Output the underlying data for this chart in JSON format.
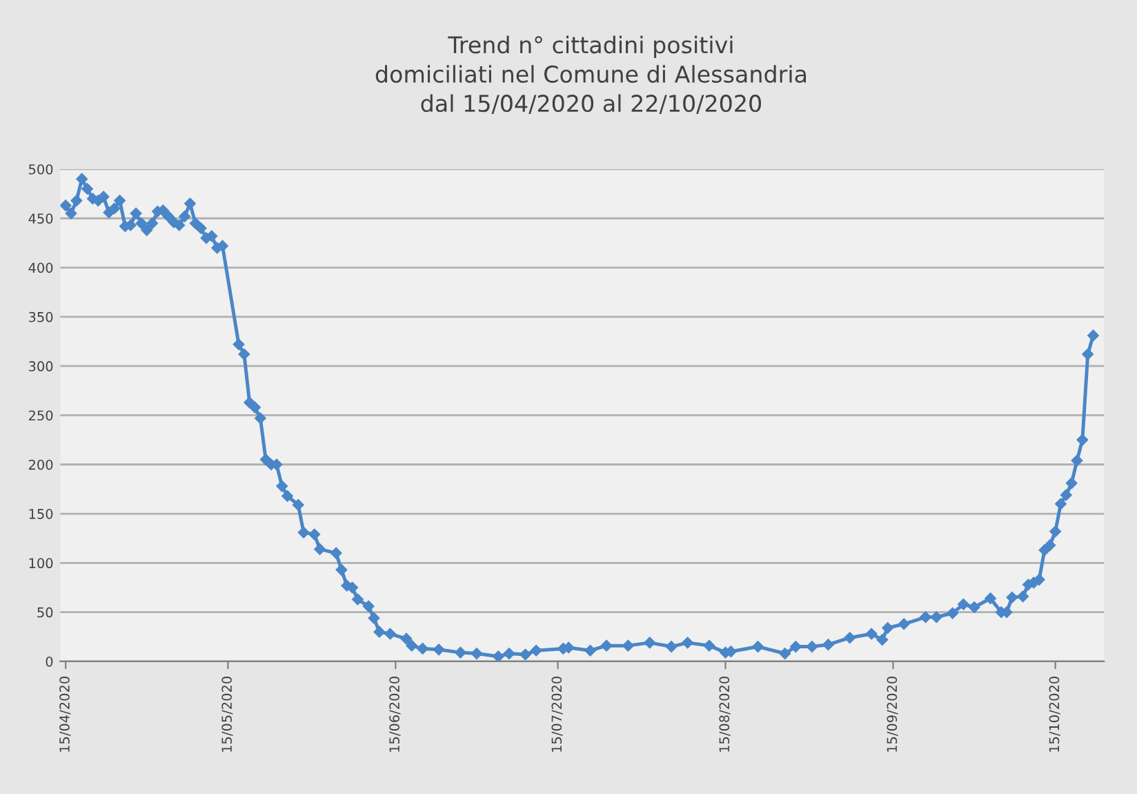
{
  "chart_data": {
    "type": "line",
    "title": "Trend n° cittadini positivi\ndomiciliati nel Comune di Alessandria\ndal 15/04/2020 al 22/10/2020",
    "x": [
      "2020-04-15",
      "2020-04-16",
      "2020-04-17",
      "2020-04-18",
      "2020-04-19",
      "2020-04-20",
      "2020-04-21",
      "2020-04-22",
      "2020-04-23",
      "2020-04-24",
      "2020-04-25",
      "2020-04-26",
      "2020-04-27",
      "2020-04-28",
      "2020-04-29",
      "2020-04-30",
      "2020-05-01",
      "2020-05-02",
      "2020-05-03",
      "2020-05-04",
      "2020-05-05",
      "2020-05-06",
      "2020-05-07",
      "2020-05-08",
      "2020-05-09",
      "2020-05-10",
      "2020-05-11",
      "2020-05-12",
      "2020-05-13",
      "2020-05-14",
      "2020-05-17",
      "2020-05-18",
      "2020-05-19",
      "2020-05-20",
      "2020-05-21",
      "2020-05-22",
      "2020-05-23",
      "2020-05-24",
      "2020-05-25",
      "2020-05-26",
      "2020-05-28",
      "2020-05-29",
      "2020-05-31",
      "2020-06-01",
      "2020-06-04",
      "2020-06-05",
      "2020-06-06",
      "2020-06-07",
      "2020-06-08",
      "2020-06-10",
      "2020-06-11",
      "2020-06-12",
      "2020-06-14",
      "2020-06-17",
      "2020-06-18",
      "2020-06-20",
      "2020-06-23",
      "2020-06-27",
      "2020-06-30",
      "2020-07-04",
      "2020-07-06",
      "2020-07-09",
      "2020-07-11",
      "2020-07-16",
      "2020-07-17",
      "2020-07-21",
      "2020-07-24",
      "2020-07-28",
      "2020-08-01",
      "2020-08-05",
      "2020-08-08",
      "2020-08-12",
      "2020-08-15",
      "2020-08-16",
      "2020-08-21",
      "2020-08-26",
      "2020-08-28",
      "2020-08-31",
      "2020-09-03",
      "2020-09-07",
      "2020-09-11",
      "2020-09-13",
      "2020-09-14",
      "2020-09-17",
      "2020-09-21",
      "2020-09-23",
      "2020-09-26",
      "2020-09-28",
      "2020-09-30",
      "2020-10-03",
      "2020-10-05",
      "2020-10-06",
      "2020-10-07",
      "2020-10-09",
      "2020-10-10",
      "2020-10-11",
      "2020-10-12",
      "2020-10-13",
      "2020-10-14",
      "2020-10-15",
      "2020-10-16",
      "2020-10-17",
      "2020-10-18",
      "2020-10-19",
      "2020-10-20",
      "2020-10-21",
      "2020-10-22"
    ],
    "series": [
      {
        "color": "#4a86c8",
        "values": [
          463,
          455,
          468,
          490,
          480,
          470,
          468,
          472,
          456,
          460,
          468,
          442,
          443,
          455,
          445,
          438,
          445,
          457,
          458,
          452,
          446,
          443,
          452,
          465,
          445,
          440,
          430,
          432,
          420,
          422,
          322,
          312,
          263,
          258,
          247,
          205,
          200,
          200,
          178,
          168,
          159,
          131,
          129,
          114,
          110,
          93,
          77,
          75,
          63,
          56,
          44,
          30,
          28,
          23,
          16,
          13,
          12,
          9,
          8,
          5,
          8,
          7,
          11,
          13,
          14,
          11,
          16,
          16,
          19,
          15,
          19,
          16,
          9,
          10,
          15,
          8,
          15,
          15,
          17,
          24,
          28,
          22,
          34,
          38,
          45,
          45,
          49,
          58,
          55,
          64,
          50,
          50,
          65,
          66,
          78,
          80,
          83,
          113,
          118,
          132,
          160,
          169,
          181,
          204,
          225,
          312,
          331
        ]
      }
    ],
    "xlim": [
      "2020-04-14",
      "2020-10-24"
    ],
    "xticks": [
      {
        "value": "2020-04-15",
        "label": "15/04/2020"
      },
      {
        "value": "2020-05-15",
        "label": "15/05/2020"
      },
      {
        "value": "2020-06-15",
        "label": "15/06/2020"
      },
      {
        "value": "2020-07-15",
        "label": "15/07/2020"
      },
      {
        "value": "2020-08-15",
        "label": "15/08/2020"
      },
      {
        "value": "2020-09-15",
        "label": "15/09/2020"
      },
      {
        "value": "2020-10-15",
        "label": "15/10/2020"
      }
    ],
    "ylim": [
      0,
      500
    ],
    "yticks": [
      0,
      50,
      100,
      150,
      200,
      250,
      300,
      350,
      400,
      450,
      500
    ],
    "grid": "y",
    "marker": "diamond",
    "line_style": "solid"
  }
}
